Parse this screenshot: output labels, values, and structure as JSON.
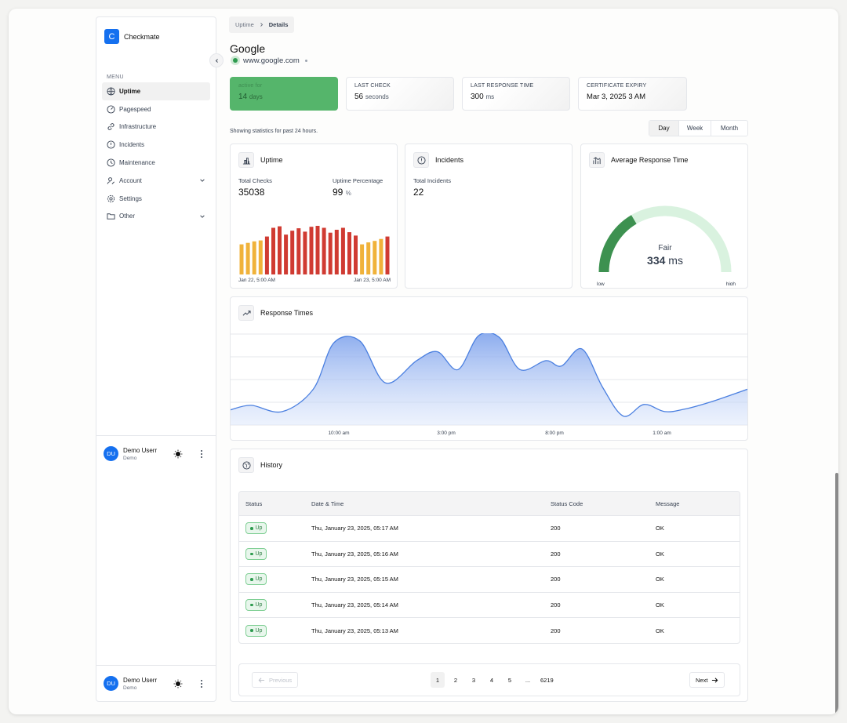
{
  "app": {
    "name": "Checkmate",
    "logo_letter": "C"
  },
  "sidebar": {
    "menu_label": "MENU",
    "items": [
      {
        "label": "Uptime",
        "icon": "globe-icon",
        "active": true
      },
      {
        "label": "Pagespeed",
        "icon": "speedometer-icon"
      },
      {
        "label": "Infrastructure",
        "icon": "link-icon"
      },
      {
        "label": "Incidents",
        "icon": "alert-circle-icon"
      },
      {
        "label": "Maintenance",
        "icon": "clock-icon"
      },
      {
        "label": "Account",
        "icon": "user-edit-icon",
        "expandable": true
      },
      {
        "label": "Settings",
        "icon": "gear-icon"
      },
      {
        "label": "Other",
        "icon": "folder-icon",
        "expandable": true
      }
    ],
    "user": {
      "initials": "DU",
      "name": "Demo Userr",
      "role": "Demo"
    },
    "user_bottom": {
      "initials": "DU",
      "name": "Demo Userr",
      "role": "Demo"
    }
  },
  "breadcrumb": {
    "parent": "Uptime",
    "current": "Details"
  },
  "monitor": {
    "name": "Google",
    "url": "www.google.com",
    "status_color": "#2e9b4f"
  },
  "stats": [
    {
      "label": "active for",
      "value": "14",
      "unit": "days"
    },
    {
      "label": "LAST CHECK",
      "value": "56",
      "unit": "seconds"
    },
    {
      "label": "LAST RESPONSE TIME",
      "value": "300",
      "unit": "ms"
    },
    {
      "label": "CERTIFICATE EXPIRY",
      "value": "Mar 3, 2025 3 AM",
      "unit": ""
    }
  ],
  "showing_text": "Showing statistics for past 24 hours.",
  "ranges": [
    "Day",
    "Week",
    "Month"
  ],
  "uptime_card": {
    "title": "Uptime",
    "total_checks_label": "Total Checks",
    "total_checks": "35038",
    "uptime_pct_label": "Uptime Percentage",
    "uptime_pct": "99",
    "uptime_pct_unit": "%",
    "start_label": "Jan 22, 5:00 AM",
    "end_label": "Jan 23, 5:00 AM"
  },
  "incidents_card": {
    "title": "Incidents",
    "total_label": "Total Incidents",
    "total": "22"
  },
  "response_card": {
    "title": "Average Response Time",
    "rating": "Fair",
    "value": "334",
    "unit": "ms",
    "low_label": "low",
    "high_label": "high",
    "gauge_fraction": 0.33
  },
  "response_times": {
    "title": "Response Times",
    "x_labels": [
      "10:00 am",
      "3:00 pm",
      "8:00 pm",
      "1:00 am"
    ]
  },
  "history": {
    "title": "History",
    "columns": [
      "Status",
      "Date & Time",
      "Status Code",
      "Message"
    ],
    "rows": [
      {
        "status": "Up",
        "datetime": "Thu, January 23, 2025, 05:17 AM",
        "code": "200",
        "message": "OK"
      },
      {
        "status": "Up",
        "datetime": "Thu, January 23, 2025, 05:16 AM",
        "code": "200",
        "message": "OK"
      },
      {
        "status": "Up",
        "datetime": "Thu, January 23, 2025, 05:15 AM",
        "code": "200",
        "message": "OK"
      },
      {
        "status": "Up",
        "datetime": "Thu, January 23, 2025, 05:14 AM",
        "code": "200",
        "message": "OK"
      },
      {
        "status": "Up",
        "datetime": "Thu, January 23, 2025, 05:13 AM",
        "code": "200",
        "message": "OK"
      }
    ]
  },
  "pagination": {
    "previous": "Previous",
    "next": "Next",
    "pages": [
      "1",
      "2",
      "3",
      "4",
      "5",
      "...",
      "6219"
    ],
    "current": "1"
  },
  "chart_data": [
    {
      "type": "bar",
      "title": "Uptime",
      "values": [
        0.62,
        0.65,
        0.68,
        0.7,
        0.78,
        0.96,
        0.99,
        0.82,
        0.9,
        0.95,
        0.88,
        0.98,
        1.0,
        0.96,
        0.86,
        0.92,
        0.96,
        0.87,
        0.8,
        0.62,
        0.66,
        0.69,
        0.73,
        0.78
      ],
      "colors": [
        "#f0b23a",
        "#f0b23a",
        "#f0b23a",
        "#f0b23a",
        "#d03b32",
        "#d03b32",
        "#d03b32",
        "#d03b32",
        "#d03b32",
        "#d03b32",
        "#d03b32",
        "#d03b32",
        "#d03b32",
        "#d03b32",
        "#d03b32",
        "#d03b32",
        "#d03b32",
        "#d03b32",
        "#d03b32",
        "#f0b23a",
        "#f0b23a",
        "#f0b23a",
        "#f0b23a",
        "#d03b32"
      ],
      "x_start": "Jan 22, 5:00 AM",
      "x_end": "Jan 23, 5:00 AM"
    },
    {
      "type": "area",
      "title": "Response Times",
      "x": [
        0,
        0.04,
        0.1,
        0.16,
        0.2,
        0.25,
        0.3,
        0.36,
        0.4,
        0.44,
        0.48,
        0.52,
        0.56,
        0.61,
        0.64,
        0.68,
        0.72,
        0.76,
        0.8,
        0.84,
        0.88,
        0.93,
        1.0
      ],
      "y": [
        0.17,
        0.22,
        0.15,
        0.4,
        0.92,
        0.94,
        0.47,
        0.72,
        0.82,
        0.62,
        1.0,
        0.98,
        0.62,
        0.72,
        0.66,
        0.85,
        0.42,
        0.1,
        0.23,
        0.15,
        0.18,
        0.26,
        0.4
      ],
      "x_labels": [
        "10:00 am",
        "3:00 pm",
        "8:00 pm",
        "1:00 am"
      ],
      "color": "#4a7fe0"
    }
  ]
}
